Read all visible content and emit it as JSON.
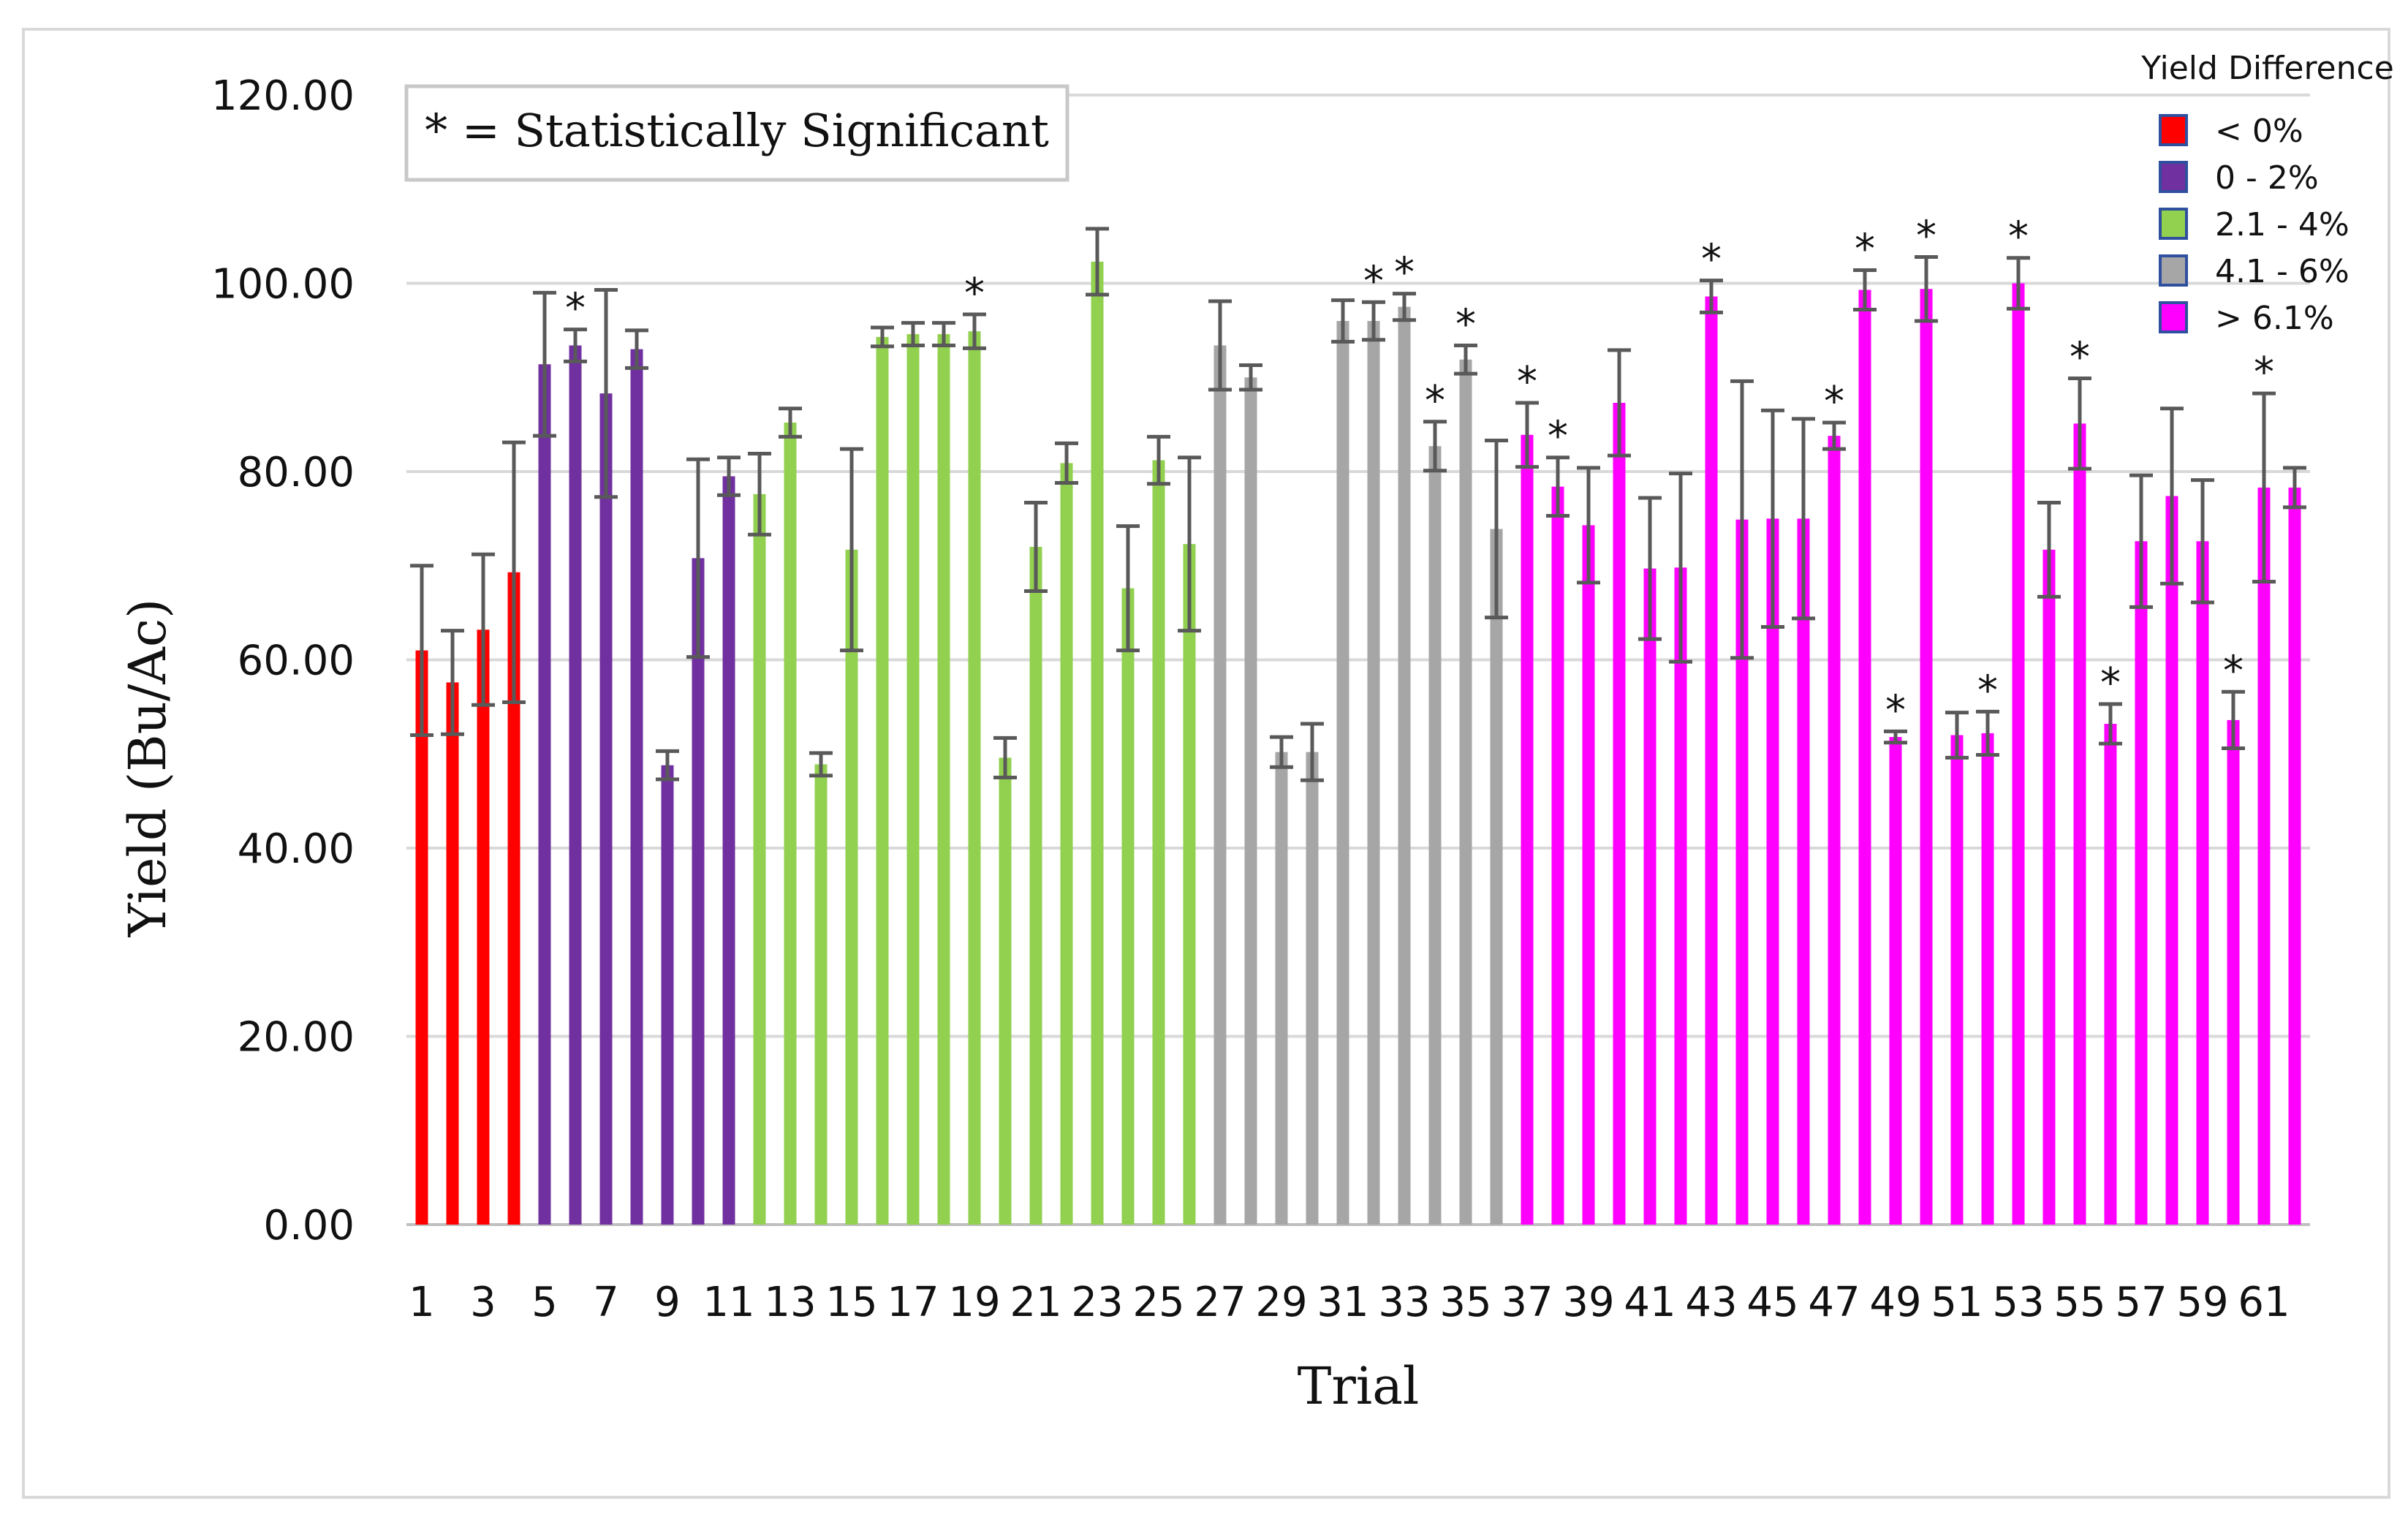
{
  "chart_data": {
    "type": "bar",
    "title": "",
    "xlabel": "Trial",
    "ylabel": "Yield (Bu/Ac)",
    "ylim": [
      0,
      120
    ],
    "y_ticks": [
      "0.00",
      "20.00",
      "40.00",
      "60.00",
      "80.00",
      "100.00",
      "120.00"
    ],
    "x_tick_labels": [
      "1",
      "3",
      "5",
      "7",
      "9",
      "11",
      "13",
      "15",
      "17",
      "19",
      "21",
      "23",
      "25",
      "27",
      "29",
      "31",
      "33",
      "35",
      "37",
      "39",
      "41",
      "43",
      "45",
      "47",
      "49",
      "51",
      "53",
      "55",
      "57",
      "59",
      "61"
    ],
    "grid": true,
    "note": "* = Statistically Significant",
    "significance_marker": "*",
    "legend": {
      "title": "Yield Difference",
      "position": "top-right",
      "entries": [
        {
          "label": "< 0%",
          "color": "#ff0000"
        },
        {
          "label": "0 - 2%",
          "color": "#7030a0"
        },
        {
          "label": "2.1 - 4%",
          "color": "#92d050"
        },
        {
          "label": "4.1 - 6%",
          "color": "#a6a6a6"
        },
        {
          "label": "> 6.1%",
          "color": "#ff00ff"
        }
      ]
    },
    "trials": [
      1,
      2,
      3,
      4,
      5,
      6,
      7,
      8,
      9,
      10,
      11,
      12,
      13,
      14,
      15,
      16,
      17,
      18,
      19,
      20,
      21,
      22,
      23,
      24,
      25,
      26,
      27,
      28,
      29,
      30,
      31,
      32,
      33,
      34,
      35,
      36,
      37,
      38,
      39,
      40,
      41,
      42,
      43,
      44,
      45,
      46,
      47,
      48,
      49,
      50,
      51,
      52,
      53,
      54,
      55,
      56,
      57,
      58,
      59,
      60,
      61,
      62
    ],
    "yield_class": [
      0,
      0,
      0,
      0,
      1,
      1,
      1,
      1,
      1,
      1,
      1,
      2,
      2,
      2,
      2,
      2,
      2,
      2,
      2,
      2,
      2,
      2,
      2,
      2,
      2,
      2,
      3,
      3,
      3,
      3,
      3,
      3,
      3,
      3,
      3,
      3,
      4,
      4,
      4,
      4,
      4,
      4,
      4,
      4,
      4,
      4,
      4,
      4,
      4,
      4,
      4,
      4,
      4,
      4,
      4,
      4,
      4,
      4,
      4,
      4,
      4,
      4
    ],
    "values": [
      61.0,
      57.6,
      63.2,
      69.3,
      91.4,
      93.4,
      88.3,
      93.0,
      48.8,
      70.8,
      79.5,
      77.6,
      85.2,
      48.9,
      71.7,
      94.3,
      94.6,
      94.6,
      94.9,
      49.6,
      72.0,
      80.9,
      102.3,
      67.6,
      81.2,
      72.3,
      93.4,
      90.0,
      50.2,
      50.2,
      96.0,
      96.0,
      97.5,
      82.7,
      91.9,
      73.9,
      83.9,
      78.4,
      74.3,
      87.3,
      69.7,
      69.8,
      98.6,
      74.9,
      75.0,
      75.0,
      83.8,
      99.3,
      51.8,
      99.4,
      52.0,
      52.2,
      100.0,
      71.7,
      85.1,
      53.2,
      72.6,
      77.4,
      72.6,
      53.6,
      78.3,
      78.3
    ],
    "errors": [
      9.0,
      5.5,
      8.0,
      13.8,
      7.6,
      1.7,
      11.0,
      2.0,
      1.5,
      10.5,
      2.0,
      4.3,
      1.5,
      1.2,
      10.7,
      1.0,
      1.2,
      1.2,
      1.8,
      2.1,
      4.7,
      2.1,
      3.5,
      6.6,
      2.5,
      9.2,
      4.7,
      1.3,
      1.6,
      3.0,
      2.2,
      2.0,
      1.4,
      2.6,
      1.5,
      9.4,
      3.4,
      3.1,
      6.1,
      5.6,
      7.5,
      10.0,
      1.7,
      14.7,
      11.5,
      10.6,
      1.4,
      2.1,
      0.6,
      3.4,
      2.4,
      2.3,
      2.7,
      5.0,
      4.8,
      2.1,
      7.0,
      9.3,
      6.5,
      3.0,
      10.0,
      2.1
    ],
    "significant": [
      6,
      19,
      32,
      33,
      34,
      35,
      37,
      38,
      43,
      47,
      48,
      49,
      50,
      52,
      53,
      55,
      56,
      60,
      61
    ]
  }
}
